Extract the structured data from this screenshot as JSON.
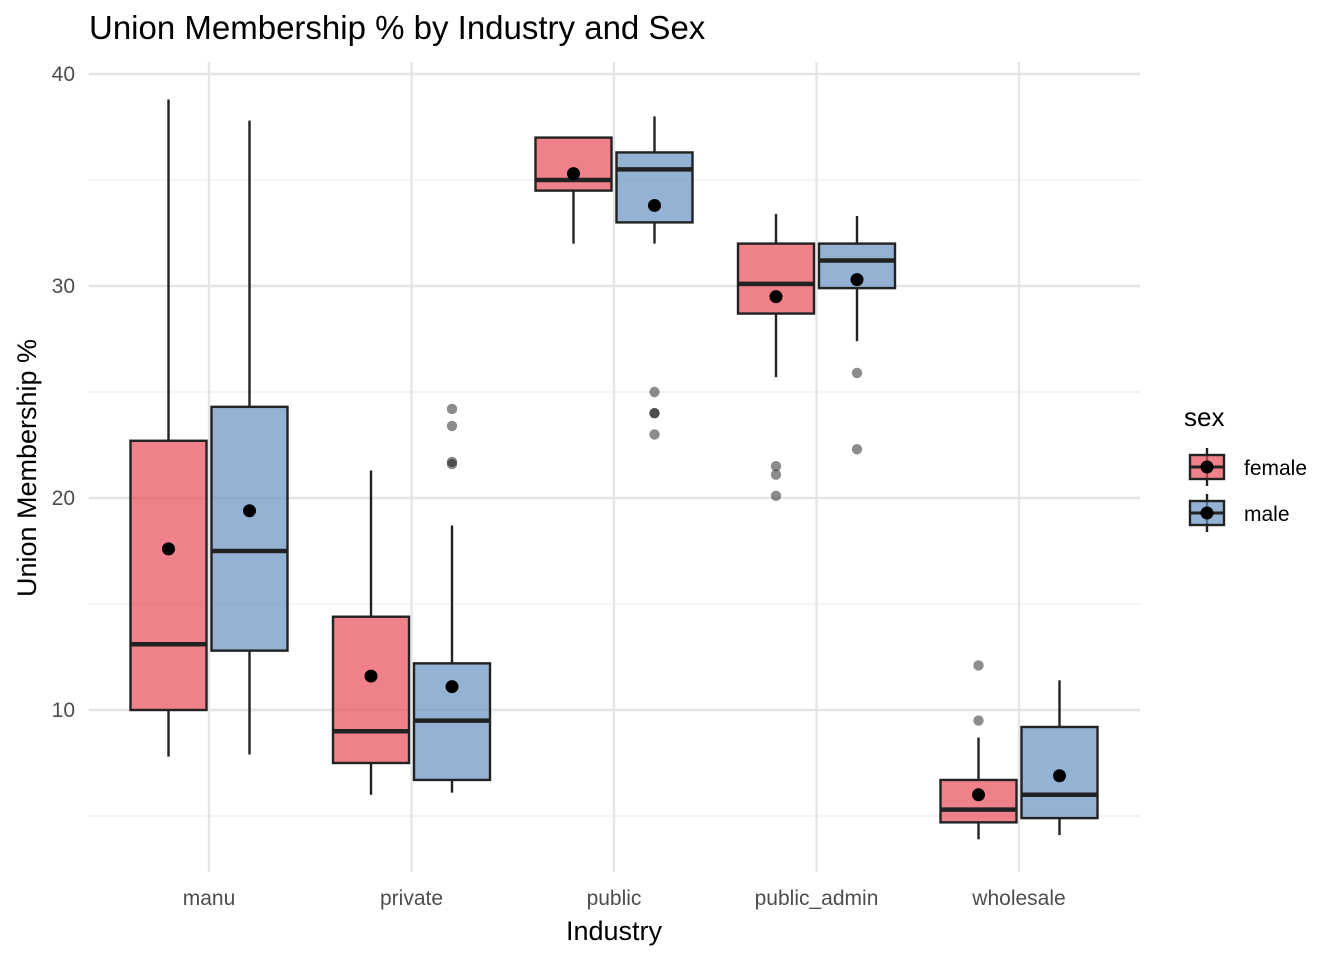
{
  "chart_data": {
    "type": "box",
    "title": "Union Membership % by Industry and Sex",
    "xlabel": "Industry",
    "ylabel": "Union Membership %",
    "ylim": [
      3.8,
      40.6
    ],
    "yticks": [
      10,
      20,
      30,
      40
    ],
    "categories": [
      "manu",
      "private",
      "public",
      "public_admin",
      "wholesale"
    ],
    "legend": {
      "title": "sex",
      "position": "right"
    },
    "grid": true,
    "series": [
      {
        "name": "female",
        "color": "#e8505b",
        "boxes": [
          {
            "category": "manu",
            "whisker_low": 7.8,
            "q1": 10.0,
            "median": 13.1,
            "q3": 22.7,
            "whisker_high": 38.8,
            "mean": 17.6,
            "outliers": []
          },
          {
            "category": "private",
            "whisker_low": 6.0,
            "q1": 7.5,
            "median": 9.0,
            "q3": 14.4,
            "whisker_high": 21.3,
            "mean": 11.6,
            "outliers": []
          },
          {
            "category": "public",
            "whisker_low": 32.0,
            "q1": 34.5,
            "median": 35.0,
            "q3": 37.0,
            "whisker_high": 37.0,
            "mean": 35.3,
            "outliers": []
          },
          {
            "category": "public_admin",
            "whisker_low": 25.7,
            "q1": 28.7,
            "median": 30.1,
            "q3": 32.0,
            "whisker_high": 33.4,
            "mean": 29.5,
            "outliers": [
              21.5,
              21.1,
              20.1
            ]
          },
          {
            "category": "wholesale",
            "whisker_low": 3.9,
            "q1": 4.7,
            "median": 5.3,
            "q3": 6.7,
            "whisker_high": 8.7,
            "mean": 6.0,
            "outliers": [
              12.1,
              9.5
            ]
          }
        ]
      },
      {
        "name": "male",
        "color": "#6a94c4",
        "boxes": [
          {
            "category": "manu",
            "whisker_low": 7.9,
            "q1": 12.8,
            "median": 17.5,
            "q3": 24.3,
            "whisker_high": 37.8,
            "mean": 19.4,
            "outliers": []
          },
          {
            "category": "private",
            "whisker_low": 6.1,
            "q1": 6.7,
            "median": 9.5,
            "q3": 12.2,
            "whisker_high": 18.7,
            "mean": 11.1,
            "outliers": [
              24.2,
              23.4,
              21.7,
              21.6
            ]
          },
          {
            "category": "public",
            "whisker_low": 32.0,
            "q1": 33.0,
            "median": 35.5,
            "q3": 36.3,
            "whisker_high": 38.0,
            "mean": 33.8,
            "outliers": [
              25.0,
              24.0,
              24.0,
              23.0
            ]
          },
          {
            "category": "public_admin",
            "whisker_low": 27.4,
            "q1": 29.9,
            "median": 31.2,
            "q3": 32.0,
            "whisker_high": 33.3,
            "mean": 30.3,
            "outliers": [
              25.9,
              22.3
            ]
          },
          {
            "category": "wholesale",
            "whisker_low": 4.1,
            "q1": 4.9,
            "median": 6.0,
            "q3": 9.2,
            "whisker_high": 11.4,
            "mean": 6.9,
            "outliers": []
          }
        ]
      }
    ]
  }
}
